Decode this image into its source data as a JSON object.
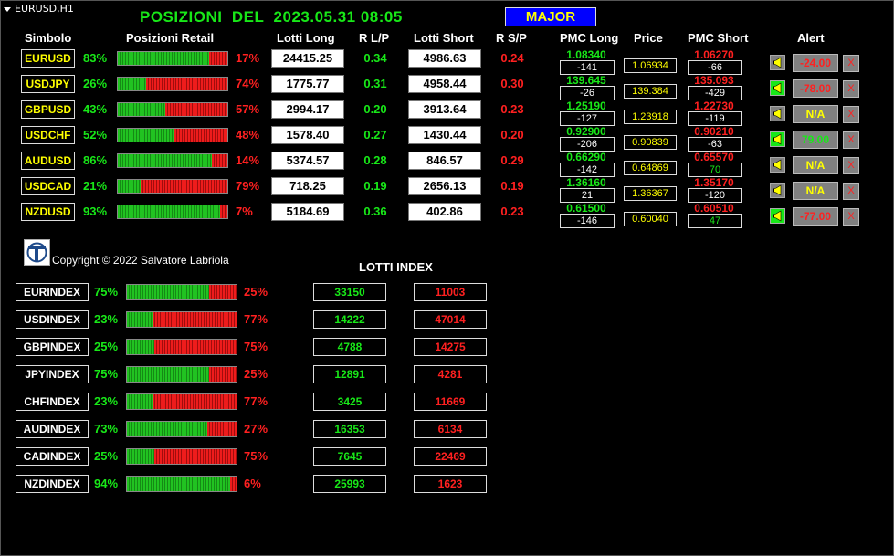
{
  "window": {
    "chart_label": "EURUSD,H1"
  },
  "header": {
    "title": "POSIZIONI  DEL  2023.05.31 08:05",
    "major_button": "MAJOR"
  },
  "columns": {
    "simbolo": "Simbolo",
    "posizioni_retail": "Posizioni Retail",
    "lotti_long": "Lotti Long",
    "r_lp": "R L/P",
    "lotti_short": "Lotti Short",
    "r_sp": "R S/P",
    "pmc_long": "PMC Long",
    "price": "Price",
    "pmc_short": "PMC Short",
    "alert": "Alert"
  },
  "colors": {
    "long": "#18e818",
    "short": "#ff2020",
    "symbol": "#ffff00",
    "major_bg": "#0000ff"
  },
  "pairs": [
    {
      "symbol": "EURUSD",
      "long_pct": "83%",
      "long_frac": 0.83,
      "short_pct": "17%",
      "lotti_long": "24415.25",
      "r_lp": "0.34",
      "lotti_short": "4986.63",
      "r_sp": "0.24",
      "pmc_long": "1.08340",
      "pmc_long_diff": "-141",
      "price": "1.06934",
      "pmc_short": "1.06270",
      "pmc_short_diff": "-66",
      "pmc_short_diff_color": "#ffffff",
      "bell_icon": "alert-bell-icon",
      "bell_color": "#808080",
      "alert_value": "-24.00",
      "alert_color": "#ff2020",
      "close_label": "X"
    },
    {
      "symbol": "USDJPY",
      "long_pct": "26%",
      "long_frac": 0.26,
      "short_pct": "74%",
      "lotti_long": "1775.77",
      "r_lp": "0.31",
      "lotti_short": "4958.44",
      "r_sp": "0.30",
      "pmc_long": "139.645",
      "pmc_long_diff": "-26",
      "price": "139.384",
      "pmc_short": "135.093",
      "pmc_short_diff": "-429",
      "pmc_short_diff_color": "#ffffff",
      "bell_icon": "alert-bell-icon",
      "bell_color": "#18e818",
      "alert_value": "-78.00",
      "alert_color": "#ff2020",
      "close_label": "X"
    },
    {
      "symbol": "GBPUSD",
      "long_pct": "43%",
      "long_frac": 0.43,
      "short_pct": "57%",
      "lotti_long": "2994.17",
      "r_lp": "0.20",
      "lotti_short": "3913.64",
      "r_sp": "0.23",
      "pmc_long": "1.25190",
      "pmc_long_diff": "-127",
      "price": "1.23918",
      "pmc_short": "1.22730",
      "pmc_short_diff": "-119",
      "pmc_short_diff_color": "#ffffff",
      "bell_icon": "alert-bell-icon",
      "bell_color": "#808080",
      "alert_value": "N/A",
      "alert_color": "#ffff00",
      "close_label": "X"
    },
    {
      "symbol": "USDCHF",
      "long_pct": "52%",
      "long_frac": 0.52,
      "short_pct": "48%",
      "lotti_long": "1578.40",
      "r_lp": "0.27",
      "lotti_short": "1430.44",
      "r_sp": "0.20",
      "pmc_long": "0.92900",
      "pmc_long_diff": "-206",
      "price": "0.90839",
      "pmc_short": "0.90210",
      "pmc_short_diff": "-63",
      "pmc_short_diff_color": "#ffffff",
      "bell_icon": "alert-bell-icon",
      "bell_color": "#18e818",
      "alert_value": "79.00",
      "alert_color": "#18e818",
      "close_label": "X"
    },
    {
      "symbol": "AUDUSD",
      "long_pct": "86%",
      "long_frac": 0.86,
      "short_pct": "14%",
      "lotti_long": "5374.57",
      "r_lp": "0.28",
      "lotti_short": "846.57",
      "r_sp": "0.29",
      "pmc_long": "0.66290",
      "pmc_long_diff": "-142",
      "price": "0.64869",
      "pmc_short": "0.65570",
      "pmc_short_diff": "70",
      "pmc_short_diff_color": "#18e818",
      "bell_icon": "alert-bell-icon",
      "bell_color": "#808080",
      "alert_value": "N/A",
      "alert_color": "#ffff00",
      "close_label": "X"
    },
    {
      "symbol": "USDCAD",
      "long_pct": "21%",
      "long_frac": 0.21,
      "short_pct": "79%",
      "lotti_long": "718.25",
      "r_lp": "0.19",
      "lotti_short": "2656.13",
      "r_sp": "0.19",
      "pmc_long": "1.36160",
      "pmc_long_diff": "21",
      "price": "1.36367",
      "pmc_short": "1.35170",
      "pmc_short_diff": "-120",
      "pmc_short_diff_color": "#ffffff",
      "bell_icon": "alert-bell-icon",
      "bell_color": "#808080",
      "alert_value": "N/A",
      "alert_color": "#ffff00",
      "close_label": "X"
    },
    {
      "symbol": "NZDUSD",
      "long_pct": "93%",
      "long_frac": 0.93,
      "short_pct": "7%",
      "lotti_long": "5184.69",
      "r_lp": "0.36",
      "lotti_short": "402.86",
      "r_sp": "0.23",
      "pmc_long": "0.61500",
      "pmc_long_diff": "-146",
      "price": "0.60040",
      "pmc_short": "0.60510",
      "pmc_short_diff": "47",
      "pmc_short_diff_color": "#18e818",
      "bell_icon": "alert-bell-icon",
      "bell_color": "#18e818",
      "alert_value": "-77.00",
      "alert_color": "#ff2020",
      "close_label": "X"
    }
  ],
  "copyright": "Copyright © 2022 Salvatore Labriola",
  "lotti_index_title": "LOTTI INDEX",
  "indexes": [
    {
      "name": "EURINDEX",
      "long_pct": "75%",
      "long_frac": 0.75,
      "short_pct": "25%",
      "lotti_long": "33150",
      "lotti_short": "11003"
    },
    {
      "name": "USDINDEX",
      "long_pct": "23%",
      "long_frac": 0.23,
      "short_pct": "77%",
      "lotti_long": "14222",
      "lotti_short": "47014"
    },
    {
      "name": "GBPINDEX",
      "long_pct": "25%",
      "long_frac": 0.25,
      "short_pct": "75%",
      "lotti_long": "4788",
      "lotti_short": "14275"
    },
    {
      "name": "JPYINDEX",
      "long_pct": "75%",
      "long_frac": 0.75,
      "short_pct": "25%",
      "lotti_long": "12891",
      "lotti_short": "4281"
    },
    {
      "name": "CHFINDEX",
      "long_pct": "23%",
      "long_frac": 0.23,
      "short_pct": "77%",
      "lotti_long": "3425",
      "lotti_short": "11669"
    },
    {
      "name": "AUDINDEX",
      "long_pct": "73%",
      "long_frac": 0.73,
      "short_pct": "27%",
      "lotti_long": "16353",
      "lotti_short": "6134"
    },
    {
      "name": "CADINDEX",
      "long_pct": "25%",
      "long_frac": 0.25,
      "short_pct": "75%",
      "lotti_long": "7645",
      "lotti_short": "22469"
    },
    {
      "name": "NZDINDEX",
      "long_pct": "94%",
      "long_frac": 0.94,
      "short_pct": "6%",
      "lotti_long": "25993",
      "lotti_short": "1623"
    }
  ]
}
